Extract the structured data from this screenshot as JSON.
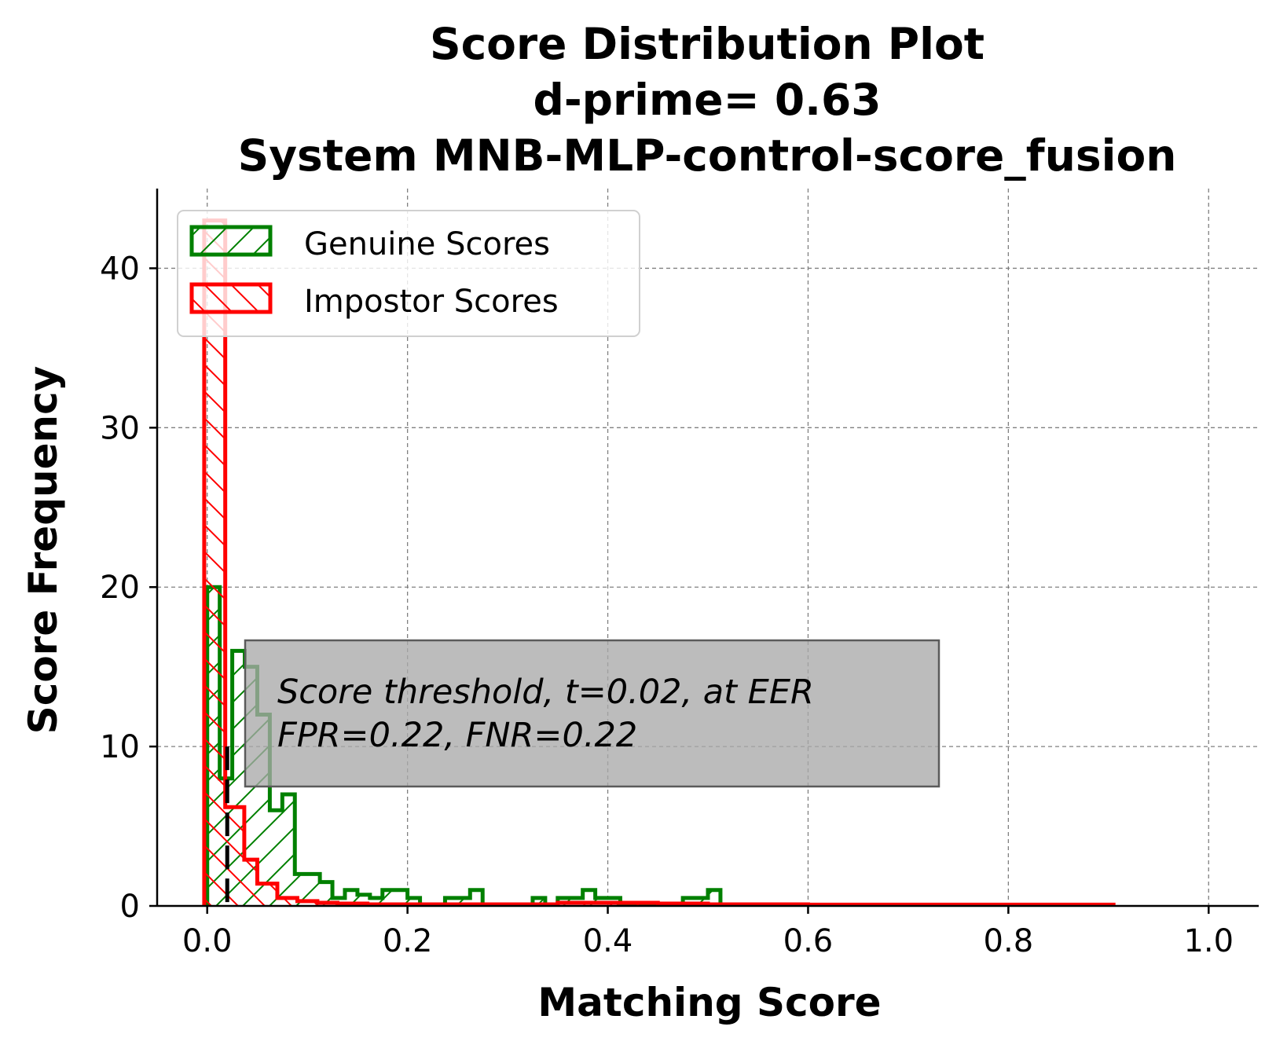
{
  "chart_data": {
    "type": "histogram",
    "title_lines": [
      "Score Distribution Plot",
      "d-prime= 0.63",
      "System MNB-MLP-control-score_fusion"
    ],
    "xlabel": "Matching Score",
    "ylabel": "Score Frequency",
    "xlim": [
      -0.05,
      1.05
    ],
    "ylim": [
      0,
      45
    ],
    "xticks": [
      0.0,
      0.2,
      0.4,
      0.6,
      0.8,
      1.0
    ],
    "xtick_labels": [
      "0.0",
      "0.2",
      "0.4",
      "0.6",
      "0.8",
      "1.0"
    ],
    "yticks": [
      0,
      10,
      20,
      30,
      40
    ],
    "ytick_labels": [
      "0",
      "10",
      "20",
      "30",
      "40"
    ],
    "grid": true,
    "legend_position": "upper left",
    "threshold": 0.02,
    "annotation": {
      "lines": [
        "Score threshold, t=0.02, at EER",
        "FPR=0.22, FNR=0.22"
      ]
    },
    "series": [
      {
        "name": "Genuine Scores",
        "color": "#008000",
        "hatch": "/",
        "bin_edges": [
          0.0,
          0.0125,
          0.025,
          0.0375,
          0.05,
          0.0625,
          0.075,
          0.0875,
          0.1,
          0.1125,
          0.125,
          0.1375,
          0.15,
          0.1625,
          0.175,
          0.1875,
          0.2,
          0.2125,
          0.225,
          0.2375,
          0.25,
          0.2625,
          0.275,
          0.2875,
          0.3,
          0.3125,
          0.325,
          0.3375,
          0.35,
          0.3625,
          0.375,
          0.3875,
          0.4,
          0.4125,
          0.425,
          0.4375,
          0.45,
          0.4625,
          0.475,
          0.4875,
          0.5,
          0.5125
        ],
        "counts": [
          20,
          8,
          16,
          15,
          12,
          6,
          7,
          2,
          2,
          1.5,
          0.5,
          1,
          0.7,
          0.5,
          1,
          1,
          0.5,
          0,
          0,
          0.5,
          0.5,
          1,
          0,
          0,
          0,
          0,
          0.5,
          0,
          0.5,
          0.5,
          1,
          0.5,
          0.5,
          0,
          0,
          0,
          0,
          0,
          0.5,
          0.5,
          1
        ]
      },
      {
        "name": "Impostor Scores",
        "color": "#ff0000",
        "hatch": "\\",
        "bin_edges": [
          -0.003,
          0.018,
          0.037,
          0.05,
          0.07,
          0.09,
          0.11,
          0.13,
          0.16,
          0.2,
          0.25,
          0.3,
          0.35,
          0.4,
          0.45,
          0.5,
          0.6,
          0.7,
          0.8,
          0.905
        ],
        "counts": [
          43,
          6.2,
          2.9,
          1.4,
          0.5,
          0.3,
          0.2,
          0.15,
          0.1,
          0.1,
          0.1,
          0.1,
          0.2,
          0.2,
          0.15,
          0.1,
          0.08,
          0.08,
          0.08
        ]
      }
    ]
  }
}
